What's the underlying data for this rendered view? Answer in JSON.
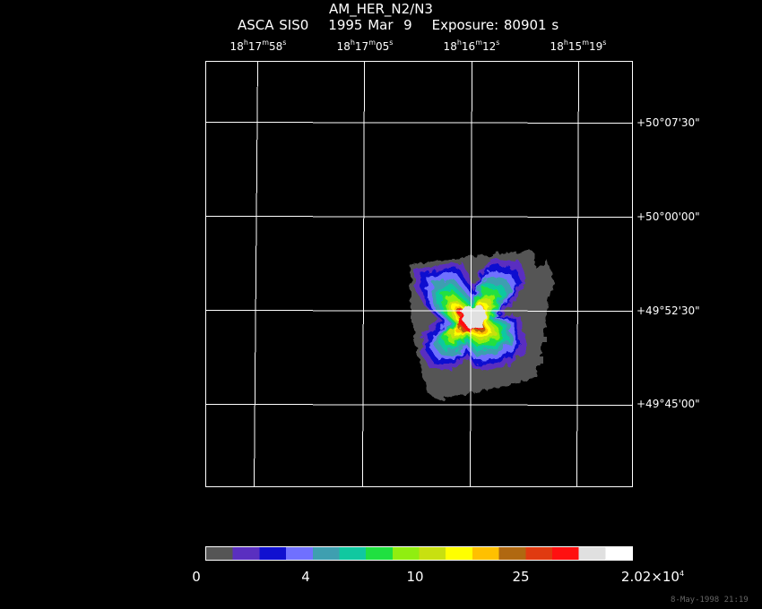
{
  "title": "AM_HER_N2/N3",
  "subtitle": {
    "instrument": "ASCA SIS0",
    "date": "1995 Mar  9",
    "exposure": "Exposure: 80901 s"
  },
  "ra_labels": [
    {
      "h": "18",
      "m": "17",
      "s": "58"
    },
    {
      "h": "18",
      "m": "17",
      "s": "05"
    },
    {
      "h": "18",
      "m": "16",
      "s": "12"
    },
    {
      "h": "18",
      "m": "15",
      "s": "19"
    }
  ],
  "dec_labels": [
    "+50°07'30\"",
    "+50°00'00\"",
    "+49°52'30\"",
    "+49°45'00\""
  ],
  "colorbar": {
    "colors": [
      "#555555",
      "#5a2fc0",
      "#1010d0",
      "#7070ff",
      "#3e9fb0",
      "#10c8a0",
      "#20e040",
      "#90ee10",
      "#c8e010",
      "#ffff00",
      "#ffc000",
      "#b06810",
      "#e03a10",
      "#ff1010",
      "#e0e0e0",
      "#ffffff"
    ],
    "labels": [
      "0",
      "4",
      "10",
      "25",
      "2.02×10",
      "4"
    ]
  },
  "timestamp": "8-May-1998 21:19"
}
